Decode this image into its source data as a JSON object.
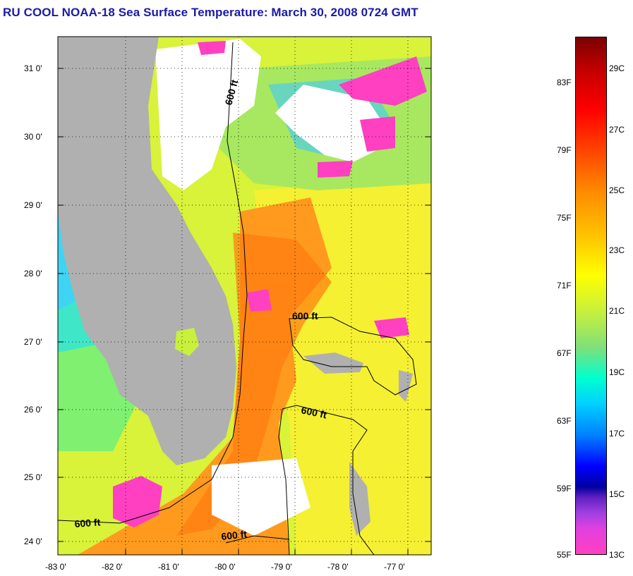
{
  "title": "RU COOL  NOAA-18  Sea Surface Temperature:  March 30, 2008 0724 GMT",
  "map": {
    "lat_ticks": [
      "31 0'",
      "30 0'",
      "29 0'",
      "28 0'",
      "27 0'",
      "26 0'",
      "25 0'",
      "24 0'"
    ],
    "lon_ticks": [
      "-83 0'",
      "-82 0'",
      "-81 0'",
      "-80 0'",
      "-79 0'",
      "-78 0'",
      "-77 0'"
    ],
    "contour_labels": [
      "600 ft",
      "600 ft",
      "600 ft",
      "600 ft",
      "600 ft"
    ],
    "colors": {
      "land": "#b0b0b0",
      "cloud": "#ffffff",
      "gulf_stream": "#ff8c1a",
      "gulf": "#c8f03c",
      "shelf": "#7fe07a",
      "cold": "#ff40c0"
    }
  },
  "colorbar": {
    "fahrenheit": [
      "83F",
      "79F",
      "75F",
      "71F",
      "67F",
      "63F",
      "59F",
      "55F"
    ],
    "celsius": [
      "29C",
      "27C",
      "25C",
      "23C",
      "21C",
      "19C",
      "17C",
      "15C",
      "13C"
    ]
  }
}
